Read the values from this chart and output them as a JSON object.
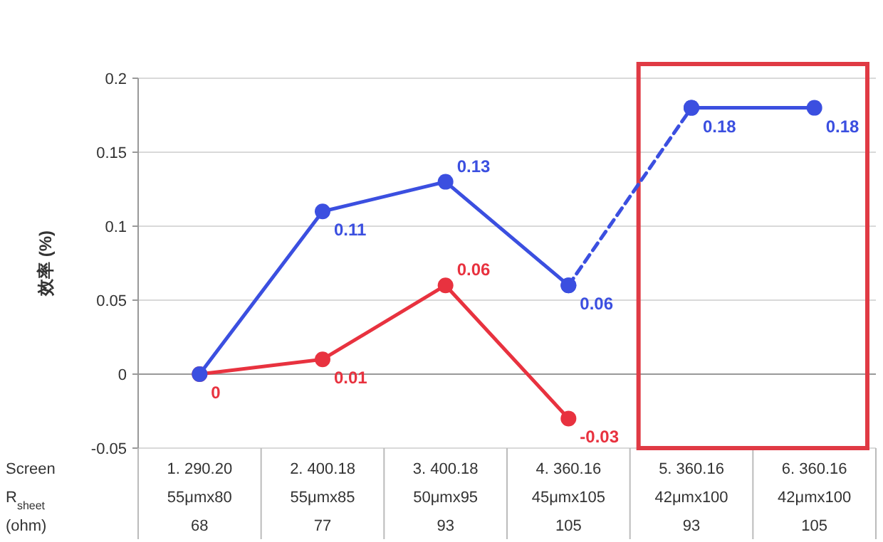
{
  "chart_data": {
    "type": "line",
    "ylabel": "效率 (%)",
    "xlabel": "Screen\nR$_{sheet}$\n(ohm)",
    "categories": [
      "1. 290.20\n55μmx80\n68",
      "2. 400.18\n55μmx85\n77",
      "3. 400.18\n50μmx95\n93",
      "4. 360.16\n45μmx105\n105",
      "5. 360.16\n42μmx100\n93",
      "6. 360.16\n42μmx100\n105"
    ],
    "series": [
      {
        "color": "#e8323f",
        "values": [
          0,
          0.01,
          0.06,
          -0.03,
          null,
          null
        ],
        "value_labels": [
          "0",
          "0.01",
          "0.06",
          "-0.03",
          null,
          null
        ],
        "marker": "circle",
        "line_style": "solid"
      },
      {
        "color": "#3b4fe0",
        "values": [
          0,
          0.11,
          0.13,
          0.06,
          null,
          null
        ],
        "value_labels": [
          null,
          "0.11",
          "0.13",
          "0.06",
          null,
          null
        ],
        "marker": "circle",
        "line_style": "solid"
      },
      {
        "color": "#3b4fe0",
        "values": [
          null,
          null,
          null,
          0.06,
          0.18,
          null
        ],
        "marker": "circle",
        "line_style": "dashed"
      },
      {
        "color": "#3b4fe0",
        "values": [
          null,
          null,
          null,
          null,
          0.18,
          0.18
        ],
        "value_labels": [
          null,
          null,
          null,
          null,
          "0.18",
          "0.18"
        ],
        "marker": "circle",
        "line_style": "solid"
      }
    ],
    "ylim": [
      -0.05,
      0.2
    ],
    "yticks": [
      -0.05,
      0,
      0.05,
      0.1,
      0.15,
      0.2
    ],
    "grid": "y"
  }
}
